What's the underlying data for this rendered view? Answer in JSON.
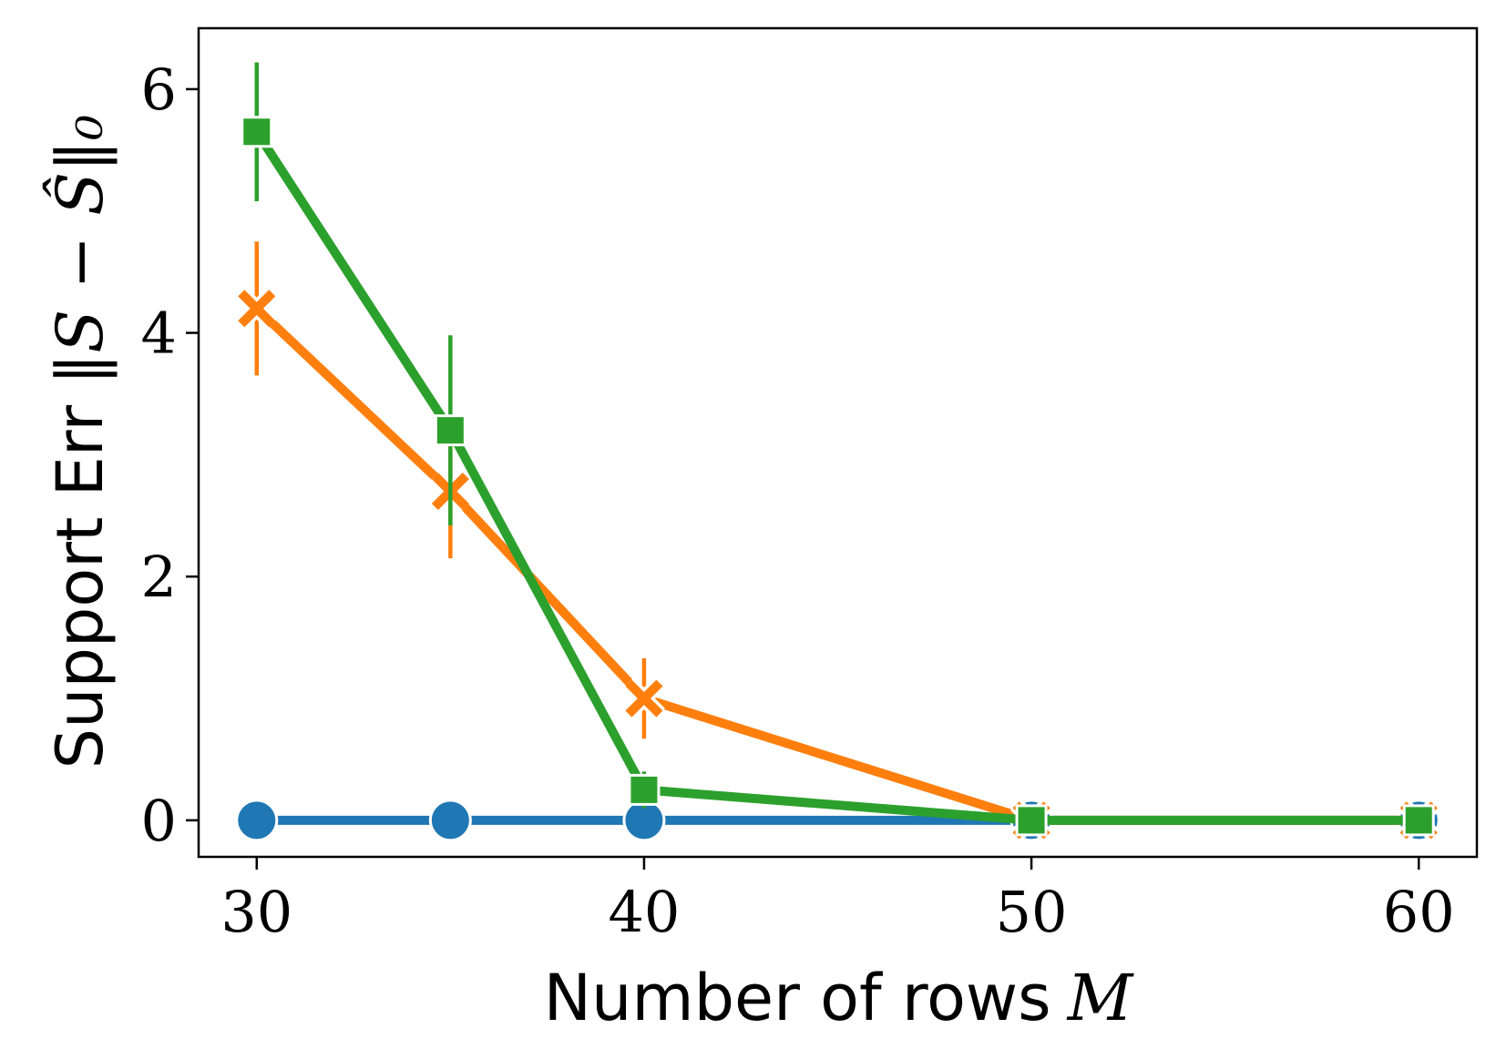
{
  "chart_data": {
    "type": "line",
    "title": "",
    "xlabel": "Number of rows",
    "xlabel_var": "M",
    "ylabel": "Support Err",
    "ylabel_math": "‖S − Ŝ‖₀",
    "xlim": [
      28.5,
      61.5
    ],
    "ylim": [
      -0.3,
      6.5
    ],
    "xticks": [
      30,
      40,
      50,
      60
    ],
    "yticks": [
      0,
      2,
      4,
      6
    ],
    "grid": false,
    "legend": "none",
    "series": [
      {
        "color": "#1f77b4",
        "marker": "circle",
        "x": [
          30,
          35,
          40,
          50,
          60
        ],
        "y": [
          0,
          0,
          0,
          0,
          0
        ],
        "err": [
          0,
          0,
          0,
          0,
          0
        ]
      },
      {
        "color": "#ff7f0e",
        "marker": "x",
        "x": [
          30,
          35,
          40,
          50,
          60
        ],
        "y": [
          4.2,
          2.7,
          1.0,
          0,
          0
        ],
        "err": [
          0.55,
          0.55,
          0.33,
          0,
          0
        ]
      },
      {
        "color": "#2ca02c",
        "marker": "square",
        "x": [
          30,
          35,
          40,
          50,
          60
        ],
        "y": [
          5.65,
          3.2,
          0.25,
          0,
          0
        ],
        "err": [
          0.57,
          0.78,
          0.15,
          0,
          0
        ]
      }
    ]
  }
}
